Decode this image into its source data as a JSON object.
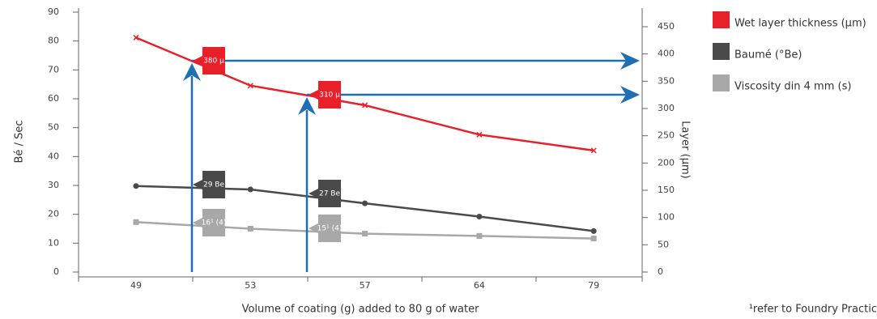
{
  "chart_data": {
    "type": "line",
    "categories": [
      "49",
      "53",
      "57",
      "64",
      "79"
    ],
    "series": [
      {
        "name": "Wet layer thickness (µm)",
        "color": "#e8202a",
        "marker": "x",
        "axis": "y2",
        "values": [
          430,
          342,
          306,
          252,
          223
        ]
      },
      {
        "name": "Baumé (°Be)",
        "color": "#4a4a4a",
        "marker": "circle",
        "values": [
          29.8,
          28.6,
          23.8,
          19.2,
          14.2
        ]
      },
      {
        "name": "Viscosity din 4 mm (s)",
        "color": "#a8a8a8",
        "marker": "square",
        "values": [
          17.3,
          15,
          13.3,
          12.5,
          11.6
        ]
      }
    ],
    "ylim": [
      0,
      90
    ],
    "yticks": [
      0,
      10,
      20,
      30,
      40,
      50,
      60,
      70,
      80,
      90
    ],
    "y2lim": [
      0,
      450
    ],
    "y2ticks": [
      0,
      50,
      100,
      150,
      200,
      250,
      300,
      350,
      400,
      450
    ],
    "ylabel": "Bé / Sec",
    "y2label": "Layer (µm)",
    "xlabel": "Volume of coating (g) added to 80 g of water",
    "annotations": [
      {
        "text": "380 µ",
        "color": "#e8202a"
      },
      {
        "text": "29 Be",
        "color": "#4a4a4a"
      },
      {
        "text": "16¹ (4)",
        "color": "#a8a8a8"
      },
      {
        "text": "310 µ",
        "color": "#e8202a"
      },
      {
        "text": "27 Be",
        "color": "#4a4a4a"
      },
      {
        "text": "15¹ (4)",
        "color": "#a8a8a8"
      }
    ],
    "footnote": "¹refer to Foundry Practic"
  }
}
